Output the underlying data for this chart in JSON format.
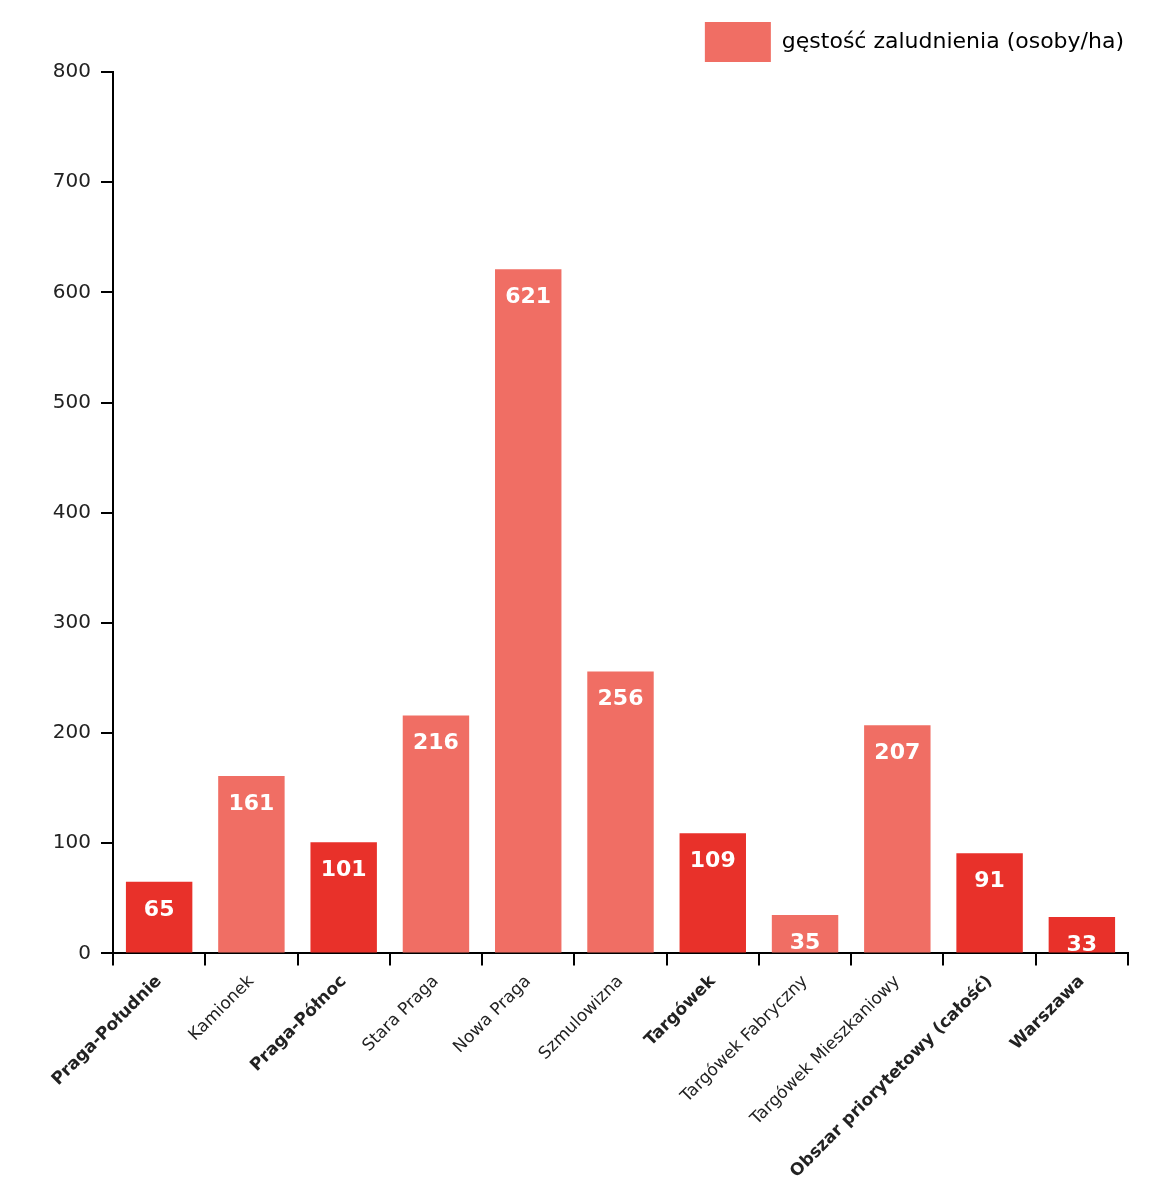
{
  "chart_data": {
    "type": "bar",
    "categories": [
      "Praga-Południe",
      "Kamionek",
      "Praga-Północ",
      "Stara Praga",
      "Nowa Praga",
      "Szmulowizna",
      "Targówek",
      "Targówek Fabryczny",
      "Targówek Mieszkaniowy",
      "Obszar priorytetowy (całość)",
      "Warszawa"
    ],
    "series": [
      {
        "name": "gęstość zaludnienia (osoby/ha)",
        "color": "#f06e64",
        "colors": [
          "#e8312a",
          "#f06e64",
          "#e8312a",
          "#f06e64",
          "#f06e64",
          "#f06e64",
          "#e8312a",
          "#f06e64",
          "#f06e64",
          "#e8312a",
          "#e8312a"
        ],
        "values": [
          65,
          161,
          101,
          216,
          621,
          256,
          109,
          35,
          207,
          91,
          33
        ]
      }
    ],
    "ylim": [
      0,
      800
    ],
    "yticks": [
      0,
      100,
      200,
      300,
      400,
      500,
      600,
      700,
      800
    ],
    "grid": false,
    "legend": "top right",
    "data_labels": true
  }
}
